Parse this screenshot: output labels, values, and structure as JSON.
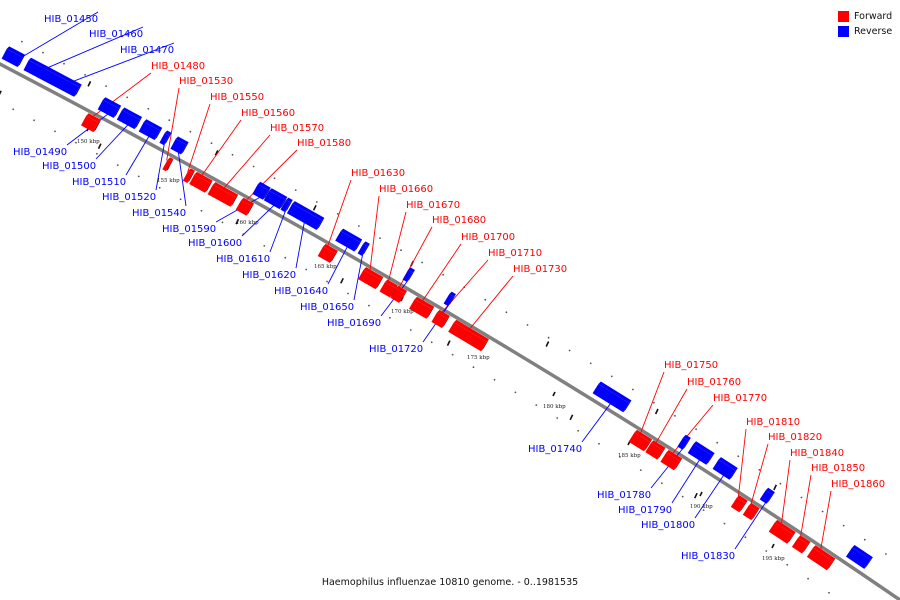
{
  "colors": {
    "forward": "#ff0000",
    "reverse": "#0000ff",
    "backbone": "#808080"
  },
  "legend": {
    "forward_label": "Forward",
    "reverse_label": "Reverse"
  },
  "caption": "Haemophilus influenzae 10810 genome. - 0..1981535",
  "ticks_kbp": [
    {
      "kbp": 150,
      "label": "150 kbp"
    },
    {
      "kbp": 155,
      "label": "155 kbp"
    },
    {
      "kbp": 160,
      "label": "160 kbp"
    },
    {
      "kbp": 165,
      "label": "165 kbp"
    },
    {
      "kbp": 170,
      "label": "170 kbp"
    },
    {
      "kbp": 175,
      "label": "175 kbp"
    },
    {
      "kbp": 180,
      "label": "180 kbp"
    },
    {
      "kbp": 185,
      "label": "185 kbp"
    },
    {
      "kbp": 190,
      "label": "190 kbp"
    },
    {
      "kbp": 195,
      "label": "195 kbp"
    }
  ],
  "genes": [
    {
      "name": "HIB_01450",
      "strand": "reverse"
    },
    {
      "name": "HIB_01460",
      "strand": "reverse"
    },
    {
      "name": "HIB_01470",
      "strand": "reverse"
    },
    {
      "name": "HIB_01480",
      "strand": "forward"
    },
    {
      "name": "HIB_01490",
      "strand": "reverse"
    },
    {
      "name": "HIB_01500",
      "strand": "reverse"
    },
    {
      "name": "HIB_01510",
      "strand": "reverse"
    },
    {
      "name": "HIB_01520",
      "strand": "reverse"
    },
    {
      "name": "HIB_01530",
      "strand": "forward"
    },
    {
      "name": "HIB_01540",
      "strand": "reverse"
    },
    {
      "name": "HIB_01550",
      "strand": "forward"
    },
    {
      "name": "HIB_01560",
      "strand": "forward"
    },
    {
      "name": "HIB_01570",
      "strand": "forward"
    },
    {
      "name": "HIB_01580",
      "strand": "forward"
    },
    {
      "name": "HIB_01590",
      "strand": "reverse"
    },
    {
      "name": "HIB_01600",
      "strand": "reverse"
    },
    {
      "name": "HIB_01610",
      "strand": "reverse"
    },
    {
      "name": "HIB_01620",
      "strand": "reverse"
    },
    {
      "name": "HIB_01630",
      "strand": "forward"
    },
    {
      "name": "HIB_01640",
      "strand": "reverse"
    },
    {
      "name": "HIB_01650",
      "strand": "reverse"
    },
    {
      "name": "HIB_01660",
      "strand": "forward"
    },
    {
      "name": "HIB_01670",
      "strand": "forward"
    },
    {
      "name": "HIB_01680",
      "strand": "forward"
    },
    {
      "name": "HIB_01690",
      "strand": "reverse"
    },
    {
      "name": "HIB_01700",
      "strand": "forward"
    },
    {
      "name": "HIB_01710",
      "strand": "forward"
    },
    {
      "name": "HIB_01720",
      "strand": "reverse"
    },
    {
      "name": "HIB_01730",
      "strand": "forward"
    },
    {
      "name": "HIB_01740",
      "strand": "reverse"
    },
    {
      "name": "HIB_01750",
      "strand": "forward"
    },
    {
      "name": "HIB_01760",
      "strand": "forward"
    },
    {
      "name": "HIB_01770",
      "strand": "forward"
    },
    {
      "name": "HIB_01780",
      "strand": "reverse"
    },
    {
      "name": "HIB_01790",
      "strand": "reverse"
    },
    {
      "name": "HIB_01800",
      "strand": "reverse"
    },
    {
      "name": "HIB_01810",
      "strand": "forward"
    },
    {
      "name": "HIB_01820",
      "strand": "forward"
    },
    {
      "name": "HIB_01830",
      "strand": "reverse"
    },
    {
      "name": "HIB_01840",
      "strand": "forward"
    },
    {
      "name": "HIB_01850",
      "strand": "forward"
    },
    {
      "name": "HIB_01860",
      "strand": "forward"
    }
  ]
}
